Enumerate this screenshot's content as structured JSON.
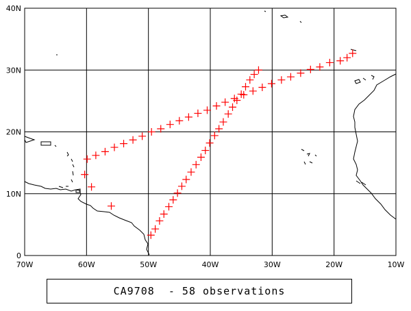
{
  "map": {
    "lat_labels": [
      "40N",
      "30N",
      "20N",
      "10N",
      "0"
    ],
    "lon_labels": [
      "70W",
      "60W",
      "50W",
      "40W",
      "30W",
      "20W",
      "10W"
    ],
    "lon_range": [
      -70,
      -10
    ],
    "lat_range": [
      0,
      40
    ],
    "grid": true,
    "marker_color": "#ff0000",
    "marker_symbol": "+",
    "coastline_color": "#000000"
  },
  "caption": {
    "dataset": "CA9708",
    "separator": "-",
    "count_text": "58 observations"
  },
  "chart_data": {
    "type": "scatter",
    "x_unit": "longitude (deg E)",
    "y_unit": "latitude (deg N)",
    "xlim": [
      -70,
      -10
    ],
    "ylim": [
      0,
      40
    ],
    "series": [
      {
        "points": [
          [
            -59.9,
            15.6
          ],
          [
            -58.5,
            16.2
          ],
          [
            -57.0,
            16.8
          ],
          [
            -55.5,
            17.5
          ],
          [
            -54.0,
            18.1
          ],
          [
            -52.5,
            18.7
          ],
          [
            -51.0,
            19.3
          ],
          [
            -49.5,
            20.0
          ],
          [
            -48.0,
            20.5
          ],
          [
            -46.5,
            21.2
          ],
          [
            -45.0,
            21.8
          ],
          [
            -43.5,
            22.4
          ],
          [
            -42.0,
            23.0
          ],
          [
            -40.5,
            23.5
          ],
          [
            -39.0,
            24.2
          ],
          [
            -37.6,
            24.8
          ],
          [
            -36.1,
            25.4
          ],
          [
            -34.6,
            26.0
          ],
          [
            -33.1,
            26.6
          ],
          [
            -31.6,
            27.2
          ],
          [
            -30.1,
            27.8
          ],
          [
            -28.5,
            28.4
          ],
          [
            -27.0,
            28.9
          ],
          [
            -25.4,
            29.5
          ],
          [
            -23.8,
            30.1
          ],
          [
            -22.3,
            30.5
          ],
          [
            -20.7,
            31.2
          ],
          [
            -19.0,
            31.5
          ],
          [
            -17.9,
            32.0
          ],
          [
            -17.0,
            32.7
          ],
          [
            -32.2,
            30.0
          ],
          [
            -32.9,
            29.3
          ],
          [
            -33.6,
            28.4
          ],
          [
            -34.3,
            27.3
          ],
          [
            -35.0,
            26.1
          ],
          [
            -35.7,
            25.1
          ],
          [
            -36.4,
            24.0
          ],
          [
            -37.1,
            22.9
          ],
          [
            -37.9,
            21.6
          ],
          [
            -38.6,
            20.5
          ],
          [
            -39.3,
            19.4
          ],
          [
            -40.1,
            18.2
          ],
          [
            -40.8,
            17.0
          ],
          [
            -41.5,
            15.9
          ],
          [
            -42.3,
            14.7
          ],
          [
            -43.1,
            13.5
          ],
          [
            -43.9,
            12.3
          ],
          [
            -44.6,
            11.2
          ],
          [
            -45.3,
            10.1
          ],
          [
            -46.0,
            9.0
          ],
          [
            -46.7,
            7.9
          ],
          [
            -47.5,
            6.7
          ],
          [
            -48.2,
            5.6
          ],
          [
            -48.9,
            4.3
          ],
          [
            -49.6,
            3.3
          ],
          [
            -60.3,
            13.1
          ],
          [
            -59.2,
            11.1
          ],
          [
            -56.0,
            8.0
          ]
        ]
      }
    ]
  }
}
